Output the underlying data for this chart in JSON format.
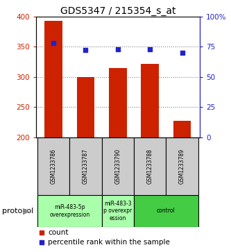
{
  "title": "GDS5347 / 215354_s_at",
  "samples": [
    "GSM1233786",
    "GSM1233787",
    "GSM1233790",
    "GSM1233788",
    "GSM1233789"
  ],
  "counts": [
    393,
    300,
    315,
    322,
    228
  ],
  "percentiles": [
    78,
    72,
    73,
    73,
    70
  ],
  "y_min": 200,
  "y_max": 400,
  "y_ticks": [
    200,
    250,
    300,
    350,
    400
  ],
  "y2_ticks": [
    0,
    25,
    50,
    75,
    100
  ],
  "bar_color": "#cc2200",
  "scatter_color": "#2222cc",
  "sample_box_color": "#cccccc",
  "grid_color": "#808080",
  "background_color": "#ffffff",
  "bar_width": 0.55,
  "protocol_label_color": "#000000",
  "protocol_arrow_color": "#888888",
  "groups": [
    {
      "label": "miR-483-5p\noverexpression",
      "start": 0,
      "end": 1,
      "color": "#aaffaa"
    },
    {
      "label": "miR-483-3\np overexpr\nession",
      "start": 2,
      "end": 2,
      "color": "#aaffaa"
    },
    {
      "label": "control",
      "start": 3,
      "end": 4,
      "color": "#44cc44"
    }
  ]
}
